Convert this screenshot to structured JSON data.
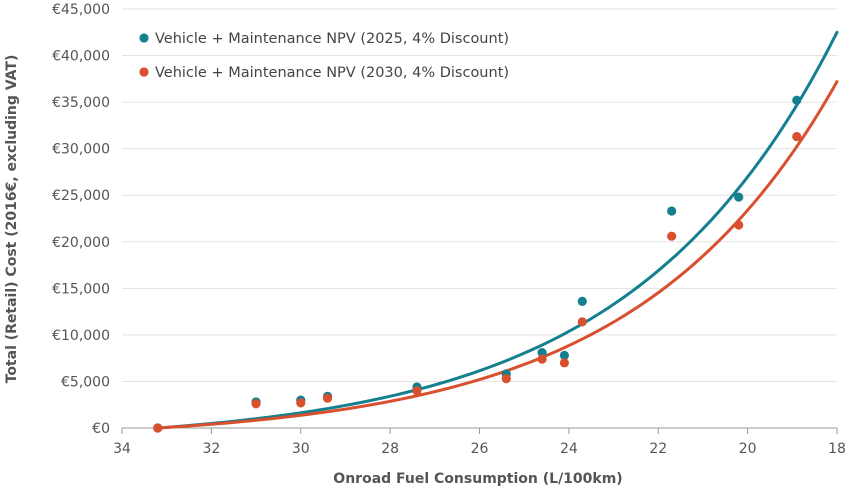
{
  "chart_data": {
    "type": "scatter",
    "title": "",
    "xlabel": "Onroad Fuel Consumption (L/100km)",
    "ylabel": "Total (Retail) Cost (2016€, excluding VAT)",
    "xlim": [
      34,
      18
    ],
    "x_reversed": true,
    "ylim": [
      0,
      45000
    ],
    "x_ticks": [
      34,
      32,
      30,
      28,
      26,
      24,
      22,
      20,
      18
    ],
    "x_tick_labels": [
      "34",
      "32",
      "30",
      "28",
      "26",
      "24",
      "22",
      "20",
      "18"
    ],
    "y_ticks": [
      0,
      5000,
      10000,
      15000,
      20000,
      25000,
      30000,
      35000,
      40000,
      45000
    ],
    "y_tick_labels": [
      "€0",
      "€5,000",
      "€10,000",
      "€15,000",
      "€20,000",
      "€25,000",
      "€30,000",
      "€35,000",
      "€40,000",
      "€45,000"
    ],
    "grid": "horizontal",
    "legend_position": "top-left",
    "series": [
      {
        "name": "Vehicle + Maintenance NPV (2025, 4% Discount)",
        "color": "#137f8f",
        "x": [
          33.2,
          31.0,
          30.0,
          29.4,
          27.4,
          25.4,
          24.6,
          24.1,
          23.7,
          21.7,
          20.2,
          18.9
        ],
        "y": [
          0,
          2800,
          3000,
          3400,
          4400,
          5800,
          8100,
          7800,
          13600,
          23300,
          24800,
          35200
        ],
        "trendline": {
          "type": "exponential",
          "x0": 33.2,
          "y0": 0,
          "y_end": 42500,
          "k": 0.217
        }
      },
      {
        "name": "Vehicle + Maintenance NPV (2030, 4% Discount)",
        "color": "#d9502e",
        "x": [
          33.2,
          31.0,
          30.0,
          29.4,
          27.4,
          25.4,
          24.6,
          24.1,
          23.7,
          21.7,
          20.2,
          18.9
        ],
        "y": [
          0,
          2600,
          2700,
          3200,
          4000,
          5300,
          7400,
          7000,
          11400,
          20600,
          21800,
          31300
        ],
        "trendline": {
          "type": "exponential",
          "x0": 33.2,
          "y0": 0,
          "y_end": 37200,
          "k": 0.222
        }
      }
    ]
  }
}
